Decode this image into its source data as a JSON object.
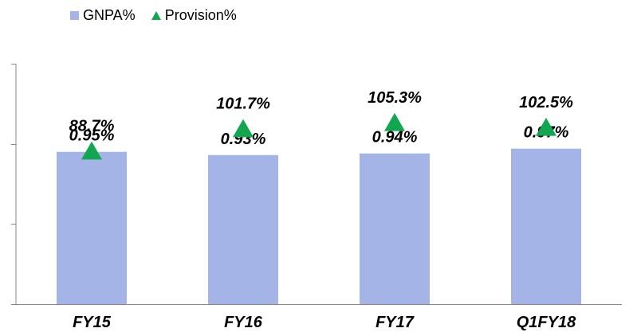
{
  "chart_data": {
    "type": "bar",
    "categories": [
      "FY15",
      "FY16",
      "FY17",
      "Q1FY18"
    ],
    "series": [
      {
        "name": "GNPA%",
        "type": "bar",
        "values": [
          0.95,
          0.93,
          0.94,
          0.97
        ],
        "labels": [
          "0.95%",
          "0.93%",
          "0.94%",
          "0.97%"
        ],
        "color": "#a4b4e6"
      },
      {
        "name": "Provision%",
        "type": "marker",
        "marker": "triangle",
        "values": [
          88.7,
          101.7,
          105.3,
          102.5
        ],
        "labels": [
          "88.7%",
          "101.7%",
          "105.3%",
          "102.5%"
        ],
        "color": "#13a650"
      }
    ],
    "title": "",
    "xlabel": "",
    "ylabel": "",
    "ylim": [
      0,
      1.5
    ],
    "y2lim": [
      0,
      140
    ],
    "grid": false,
    "legend_position": "top-left"
  }
}
